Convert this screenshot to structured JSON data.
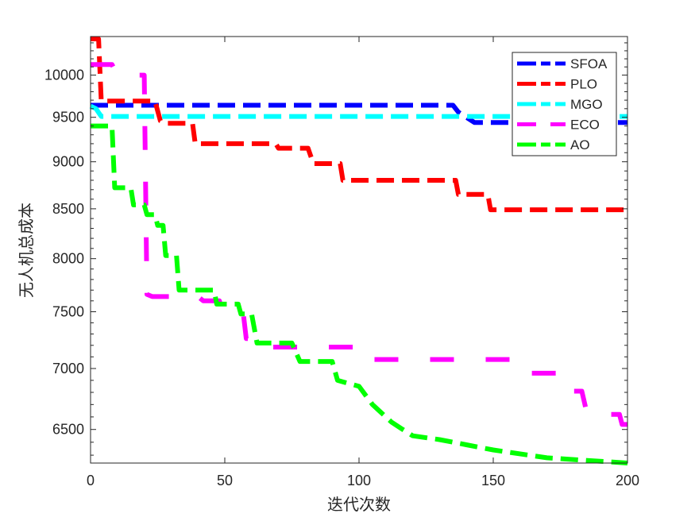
{
  "chart_data": {
    "type": "line",
    "title": "",
    "xlabel": "迭代次数",
    "ylabel": "无人机总成本",
    "xlim": [
      0,
      200
    ],
    "ylim": [
      6240,
      10480
    ],
    "yscale": "log",
    "xticks": [
      0,
      50,
      100,
      150,
      200
    ],
    "yticks": [
      6500,
      7000,
      7500,
      8000,
      8500,
      9000,
      9500,
      10000
    ],
    "legend_position": "top-right",
    "series": [
      {
        "name": "SFOA",
        "color": "#0000ff",
        "dash": "22,10",
        "points": [
          [
            0,
            9640
          ],
          [
            135,
            9640
          ],
          [
            137,
            9560
          ],
          [
            143,
            9440
          ],
          [
            200,
            9440
          ]
        ]
      },
      {
        "name": "PLO",
        "color": "#ff0000",
        "dash": "22,10",
        "points": [
          [
            0,
            10450
          ],
          [
            3,
            10450
          ],
          [
            4,
            9690
          ],
          [
            24,
            9690
          ],
          [
            26,
            9460
          ],
          [
            28,
            9430
          ],
          [
            38,
            9430
          ],
          [
            39,
            9200
          ],
          [
            69,
            9200
          ],
          [
            70,
            9150
          ],
          [
            81,
            9150
          ],
          [
            83,
            8980
          ],
          [
            93,
            8980
          ],
          [
            94,
            8800
          ],
          [
            136,
            8800
          ],
          [
            137,
            8650
          ],
          [
            148,
            8650
          ],
          [
            149,
            8490
          ],
          [
            200,
            8490
          ]
        ]
      },
      {
        "name": "MGO",
        "color": "#00ffff",
        "dash": "22,10",
        "points": [
          [
            0,
            9630
          ],
          [
            2,
            9600
          ],
          [
            4,
            9510
          ],
          [
            200,
            9510
          ]
        ]
      },
      {
        "name": "ECO",
        "color": "#ff00ff",
        "dash": "30,40",
        "points": [
          [
            0,
            10130
          ],
          [
            8,
            10130
          ],
          [
            10,
            10000
          ],
          [
            20,
            10000
          ],
          [
            21,
            7660
          ],
          [
            23,
            7640
          ],
          [
            40,
            7640
          ],
          [
            42,
            7600
          ],
          [
            48,
            7600
          ],
          [
            50,
            7460
          ],
          [
            57,
            7460
          ],
          [
            58,
            7260
          ],
          [
            62,
            7260
          ],
          [
            63,
            7185
          ],
          [
            104,
            7185
          ],
          [
            105,
            7077
          ],
          [
            157,
            7077
          ],
          [
            159,
            6960
          ],
          [
            175,
            6960
          ],
          [
            177,
            6810
          ],
          [
            183,
            6810
          ],
          [
            185,
            6620
          ],
          [
            197,
            6620
          ],
          [
            198,
            6540
          ],
          [
            200,
            6540
          ]
        ]
      },
      {
        "name": "AO",
        "color": "#00ff00",
        "dash": "22,10",
        "points": [
          [
            0,
            9400
          ],
          [
            8,
            9400
          ],
          [
            9,
            8720
          ],
          [
            15,
            8720
          ],
          [
            16,
            8540
          ],
          [
            20,
            8540
          ],
          [
            21,
            8440
          ],
          [
            24,
            8440
          ],
          [
            25,
            8330
          ],
          [
            27,
            8330
          ],
          [
            28,
            8030
          ],
          [
            32,
            8030
          ],
          [
            33,
            7700
          ],
          [
            46,
            7700
          ],
          [
            47,
            7570
          ],
          [
            55,
            7570
          ],
          [
            56,
            7480
          ],
          [
            60,
            7480
          ],
          [
            62,
            7220
          ],
          [
            75,
            7220
          ],
          [
            78,
            7060
          ],
          [
            90,
            7060
          ],
          [
            92,
            6900
          ],
          [
            100,
            6850
          ],
          [
            105,
            6700
          ],
          [
            112,
            6560
          ],
          [
            116,
            6504
          ],
          [
            120,
            6450
          ],
          [
            130,
            6420
          ],
          [
            140,
            6380
          ],
          [
            150,
            6340
          ],
          [
            170,
            6280
          ],
          [
            185,
            6260
          ],
          [
            200,
            6240
          ]
        ]
      }
    ]
  }
}
